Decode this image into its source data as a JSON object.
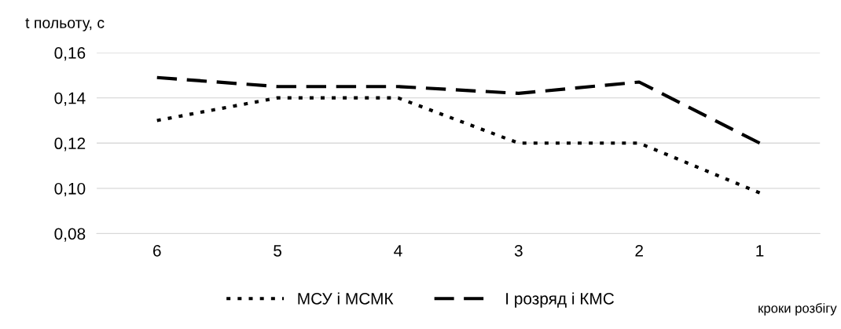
{
  "chart_data": {
    "type": "line",
    "ylabel": "t польоту, с",
    "xlabel": "кроки розбігу",
    "categories": [
      "6",
      "5",
      "4",
      "3",
      "2",
      "1"
    ],
    "series": [
      {
        "name": "МСУ і МСМК",
        "color": "#000000",
        "line_style": "dotted",
        "values": [
          0.13,
          0.14,
          0.14,
          0.12,
          0.12,
          0.098
        ]
      },
      {
        "name": "I розряд і КМС",
        "color": "#000000",
        "line_style": "dashed",
        "values": [
          0.149,
          0.145,
          0.145,
          0.142,
          0.147,
          0.12
        ]
      }
    ],
    "ylim": [
      0.08,
      0.16
    ],
    "yticks": [
      {
        "value": 0.08,
        "label": "0,08"
      },
      {
        "value": 0.1,
        "label": "0,10"
      },
      {
        "value": 0.12,
        "label": "0,12"
      },
      {
        "value": 0.14,
        "label": "0,14"
      },
      {
        "value": 0.16,
        "label": "0,16"
      }
    ],
    "grid": "y",
    "legend": "bottom"
  }
}
